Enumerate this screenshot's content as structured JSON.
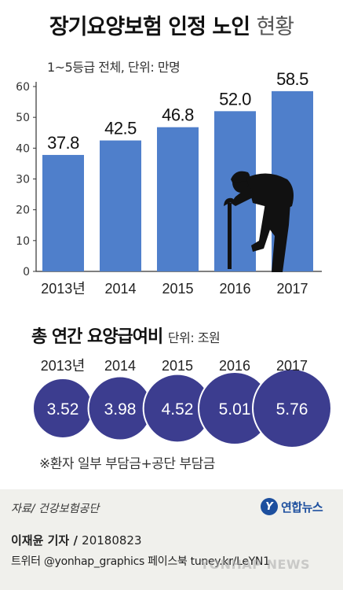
{
  "header": {
    "title_bold": "장기요양보험 인정 노인",
    "title_light": "현황",
    "subtitle": "1~5등급 전체, 단위: 만명"
  },
  "chart_data": [
    {
      "type": "bar",
      "title": "장기요양보험 인정 노인 현황",
      "subtitle": "1~5등급 전체, 단위: 만명",
      "categories": [
        "2013년",
        "2014",
        "2015",
        "2016",
        "2017"
      ],
      "values": [
        37.8,
        42.5,
        46.8,
        52.0,
        58.5
      ],
      "value_labels": [
        "37.8",
        "42.5",
        "46.8",
        "52.0",
        "58.5"
      ],
      "yticks": [
        "0",
        "10",
        "20",
        "30",
        "40",
        "50",
        "60"
      ],
      "ylim": [
        0,
        60
      ],
      "bar_color": "#4f7fcb",
      "grid": false
    },
    {
      "type": "table",
      "title": "총 연간 요양급여비",
      "unit": "단위: 조원",
      "categories": [
        "2013년",
        "2014",
        "2015",
        "2016",
        "2017"
      ],
      "values": [
        3.52,
        3.98,
        4.52,
        5.01,
        5.76
      ],
      "value_labels": [
        "3.52",
        "3.98",
        "4.52",
        "5.01",
        "5.76"
      ],
      "circle_color": "#3c3d8f"
    }
  ],
  "section2": {
    "title": "총 연간 요양급여비",
    "unit": "단위: 조원",
    "footnote": "※환자 일부 부담금+공단 부담금"
  },
  "footer": {
    "source": "자료/ 건강보험공단",
    "logo_mark": "Y",
    "logo_text": "연합뉴스",
    "byline": "이재윤 기자 /",
    "date": "20180823",
    "social": "트위터 @yonhap_graphics  페이스북 tuney.kr/LeYN1",
    "watermark": "YONHAP NEWS"
  },
  "colors": {
    "bar": "#4f7fcb",
    "circle": "#3c3d8f",
    "silhouette": "#111111"
  }
}
